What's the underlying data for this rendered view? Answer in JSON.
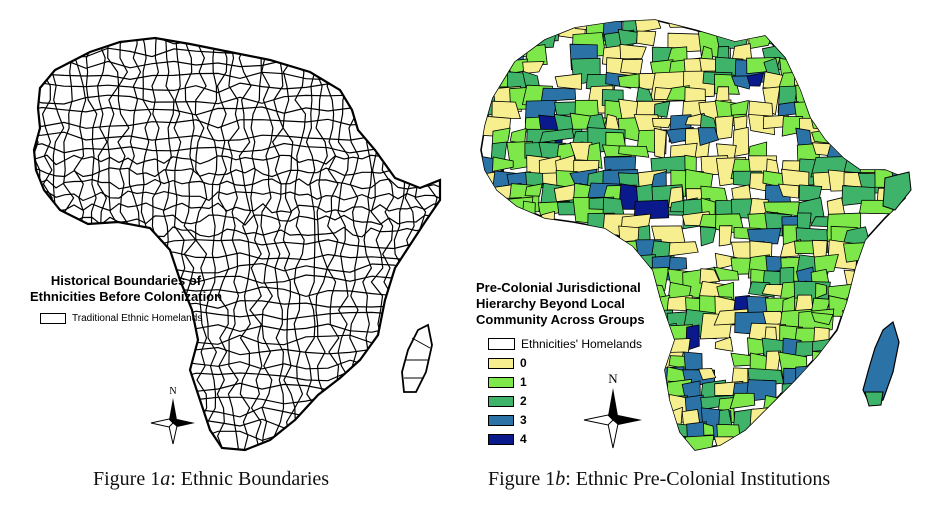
{
  "figure_a": {
    "legend_title_line1": "Historical Boundaries of",
    "legend_title_line2": "Ethnicities Before Colonization",
    "legend_item": "Traditional Ethnic Homelands",
    "compass_label": "N",
    "caption_prefix": "Figure 1",
    "caption_letter": "a",
    "caption_text": ": Ethnic Boundaries"
  },
  "figure_b": {
    "legend_title_line1": "Pre-Colonial Jurisdictional",
    "legend_title_line2": "Hierarchy Beyond Local",
    "legend_title_line3": "Community Across Groups",
    "legend_outline_item": "Ethnicities' Homelands",
    "legend_classes": [
      {
        "label": "0",
        "color": "#f7ef8f"
      },
      {
        "label": "1",
        "color": "#7ee84a"
      },
      {
        "label": "2",
        "color": "#3fb36a"
      },
      {
        "label": "3",
        "color": "#2b73a6"
      },
      {
        "label": "4",
        "color": "#0a1a8c"
      }
    ],
    "compass_label": "N",
    "caption_prefix": "Figure 1",
    "caption_letter": "b",
    "caption_text": ": Ethnic Pre-Colonial Institutions"
  }
}
